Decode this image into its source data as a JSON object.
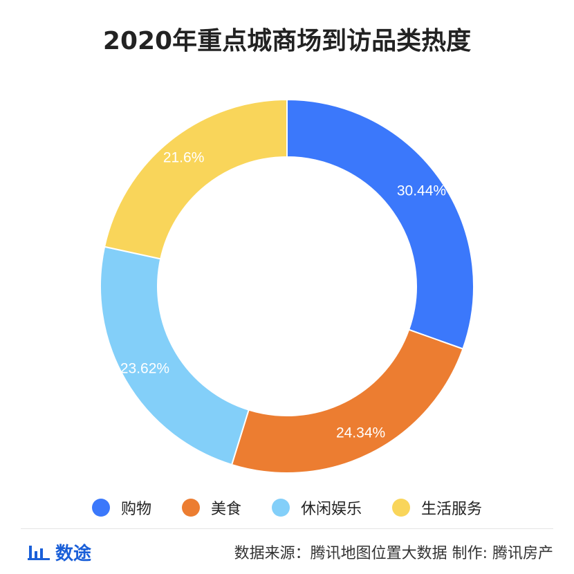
{
  "chart_data": {
    "type": "pie",
    "title": "2020年重点城商场到访品类热度",
    "categories": [
      "购物",
      "美食",
      "休闲娱乐",
      "生活服务"
    ],
    "values": [
      30.44,
      24.34,
      23.62,
      21.6
    ],
    "labels": [
      "30.44%",
      "24.34%",
      "23.62%",
      "21.6%"
    ],
    "colors": [
      "#3b78fb",
      "#ec7d31",
      "#83cff9",
      "#f9d55a"
    ],
    "legend_position": "bottom"
  },
  "footer": {
    "brand": "数途",
    "brand_icon": "bar-chart-icon",
    "source": "数据来源：腾讯地图位置大数据  制作: 腾讯房产"
  }
}
